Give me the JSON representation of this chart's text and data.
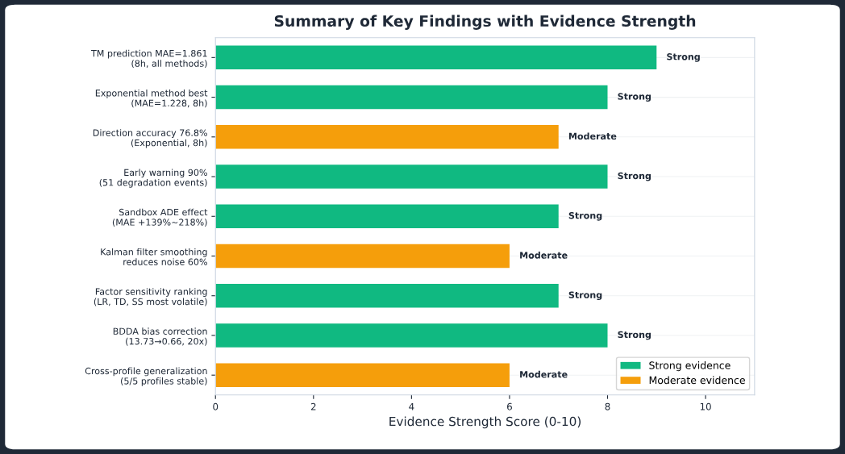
{
  "chart_data": {
    "type": "bar",
    "orientation": "horizontal",
    "title": "Summary of Key Findings with Evidence Strength",
    "xlabel": "Evidence Strength Score (0-10)",
    "categories": [
      "TM prediction MAE=1.861\n(8h, all methods)",
      "Exponential method best\n(MAE=1.228, 8h)",
      "Direction accuracy 76.8%\n(Exponential, 8h)",
      "Early warning 90%\n(51 degradation events)",
      "Sandbox ADE effect\n(MAE +139%~218%)",
      "Kalman filter smoothing\nreduces noise 60%",
      "Factor sensitivity ranking\n(LR, TD, SS most volatile)",
      "BDDA bias correction\n(13.73→0.66, 20x)",
      "Cross-profile generalization\n(5/5 profiles stable)"
    ],
    "series": [
      {
        "name": "Strong evidence",
        "color": "#10b981",
        "values": [
          9,
          8,
          null,
          8,
          7,
          null,
          7,
          8,
          null
        ],
        "value_labels": [
          "Strong",
          "Strong",
          null,
          "Strong",
          "Strong",
          null,
          "Strong",
          "Strong",
          null
        ]
      },
      {
        "name": "Moderate evidence",
        "color": "#f59e0b",
        "values": [
          null,
          null,
          7,
          null,
          null,
          6,
          null,
          null,
          6
        ],
        "value_labels": [
          null,
          null,
          "Moderate",
          null,
          null,
          "Moderate",
          null,
          null,
          "Moderate"
        ]
      }
    ],
    "xlim": [
      0,
      11
    ],
    "xticks": [
      0,
      2,
      4,
      6,
      8,
      10
    ],
    "grid": "y",
    "legend": "bottom right"
  }
}
